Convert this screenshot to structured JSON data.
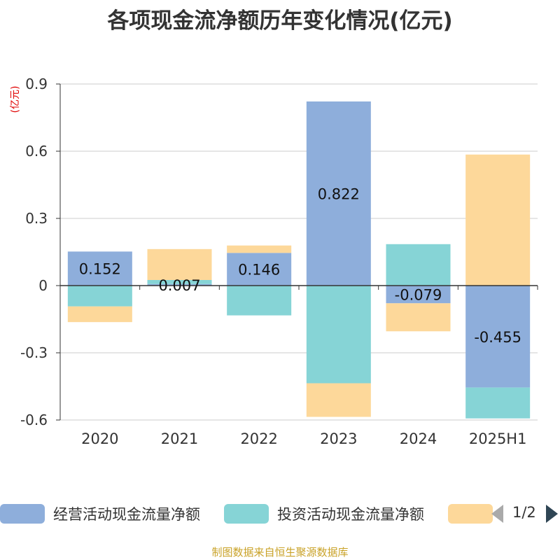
{
  "chart_data": {
    "type": "bar",
    "stacked": true,
    "title": "各项现金流净额历年变化情况(亿元)",
    "unit_label": "(亿元)",
    "categories": [
      "2020",
      "2021",
      "2022",
      "2023",
      "2024",
      "2025H1"
    ],
    "ylim": [
      -0.6,
      0.9
    ],
    "yticks": [
      -0.6,
      -0.3,
      0,
      0.3,
      0.6,
      0.9
    ],
    "ytick_labels": [
      "-0.6",
      "-0.3",
      "0",
      "0.3",
      "0.6",
      "0.9"
    ],
    "grid": true,
    "legend_position": "bottom",
    "series": [
      {
        "name": "经营活动现金流量净额",
        "color": "#8eaedb",
        "values": [
          0.152,
          0.007,
          0.146,
          0.822,
          -0.079,
          -0.455
        ],
        "labels": [
          "0.152",
          "0.007",
          "0.146",
          "0.822",
          "-0.079",
          "-0.455"
        ]
      },
      {
        "name": "投资活动现金流量净额",
        "color": "#86d4d6",
        "values": [
          -0.093,
          0.018,
          -0.133,
          -0.436,
          0.185,
          -0.138
        ]
      },
      {
        "name": "",
        "color": "#fdd89a",
        "values": [
          -0.07,
          0.138,
          0.033,
          -0.15,
          -0.125,
          0.585
        ]
      }
    ]
  },
  "legend": {
    "pager_text": "1/2"
  },
  "source": "制图数据来自恒生聚源数据库"
}
